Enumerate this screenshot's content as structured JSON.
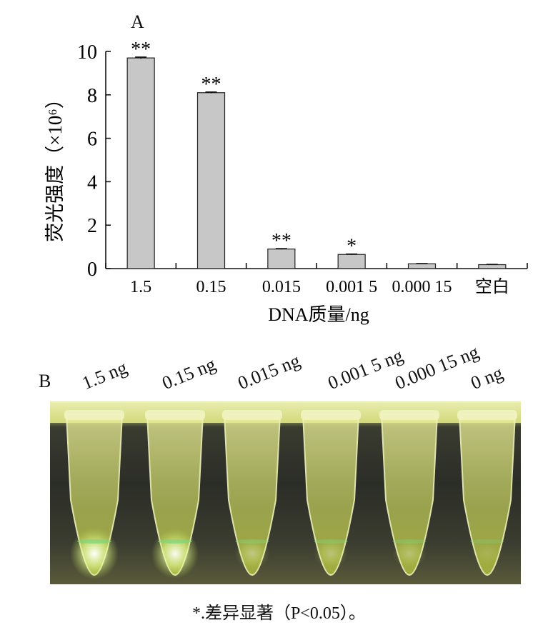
{
  "panel_a_label": "A",
  "panel_b_label": "B",
  "chart_data": {
    "type": "bar",
    "categories": [
      "1.5",
      "0.15",
      "0.015",
      "0.001 5",
      "0.000 15",
      "空白"
    ],
    "values": [
      9.7,
      8.1,
      0.9,
      0.65,
      0.22,
      0.18
    ],
    "errors": [
      0.04,
      0.03,
      0.02,
      0.02,
      0.01,
      0.01
    ],
    "significance": [
      "**",
      "**",
      "**",
      "*",
      "",
      ""
    ],
    "xlabel": "DNA质量/ng",
    "ylabel": "荧光强度（×10⁶）",
    "ylim": [
      0,
      10
    ],
    "yticks": [
      0,
      2,
      4,
      6,
      8,
      10
    ],
    "bar_color": "#c7c7c7",
    "bar_edge_color": "#222222",
    "grid": false
  },
  "tubes": {
    "labels": [
      "1.5 ng",
      "0.15 ng",
      "0.015 ng",
      "0.001 5 ng",
      "0.000 15 ng",
      "0 ng"
    ],
    "glow_levels": [
      1.0,
      0.95,
      0.35,
      0.3,
      0.28,
      0.12
    ]
  },
  "footnote": "*.差异显著（P<0.05）。"
}
